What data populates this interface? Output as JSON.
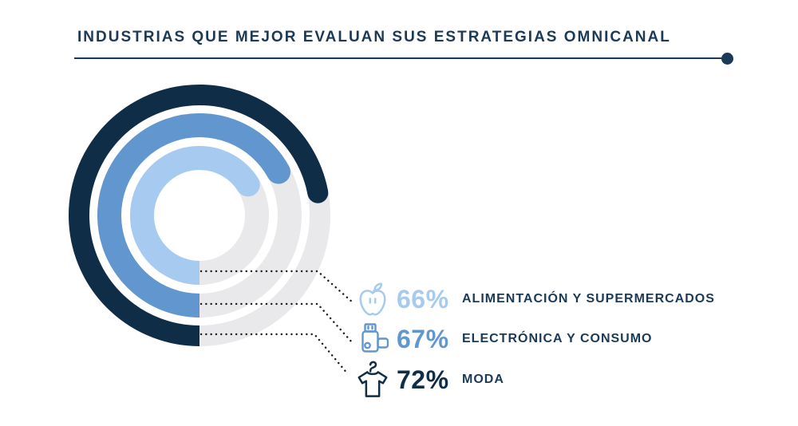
{
  "title": {
    "text": "INDUSTRIAS QUE MEJOR EVALUAN SUS ESTRATEGIAS OMNICANAL"
  },
  "colors": {
    "navy_dark": "#102d47",
    "navy_text": "#1a3a57",
    "medium_blue": "#6296ce",
    "light_blue": "#a7cbf0",
    "track_gray": "#e9e9eb",
    "leader_dot": "#1c1c1e",
    "background": "#ffffff"
  },
  "chart_data": {
    "type": "donut-rings",
    "title": "INDUSTRIAS QUE MEJOR EVALUAN SUS ESTRATEGIAS OMNICANAL",
    "unit": "%",
    "max_value": 100,
    "start_position": "bottom",
    "direction": "clockwise",
    "track_color": "#e9e9eb",
    "rings": [
      {
        "label": "ALIMENTACIÓN Y SUPERMERCADOS",
        "value": 66,
        "ring": "inner",
        "color": "#a7cbf0",
        "icon": "apple-icon"
      },
      {
        "label": "ELECTRÓNICA Y CONSUMO",
        "value": 67,
        "ring": "middle",
        "color": "#6296ce",
        "icon": "usb-drive-icon"
      },
      {
        "label": "MODA",
        "value": 72,
        "ring": "outer",
        "color": "#102d47",
        "icon": "tshirt-hanger-icon"
      }
    ]
  },
  "legend": {
    "items": [
      {
        "percent": "66%",
        "label": "ALIMENTACIÓN Y SUPERMERCADOS",
        "color_key": "light_blue",
        "icon": "apple-icon"
      },
      {
        "percent": "67%",
        "label": "ELECTRÓNICA Y CONSUMO",
        "color_key": "medium_blue",
        "icon": "usb-drive-icon"
      },
      {
        "percent": "72%",
        "label": "MODA",
        "color_key": "navy_dark",
        "icon": "tshirt-hanger-icon"
      }
    ]
  }
}
